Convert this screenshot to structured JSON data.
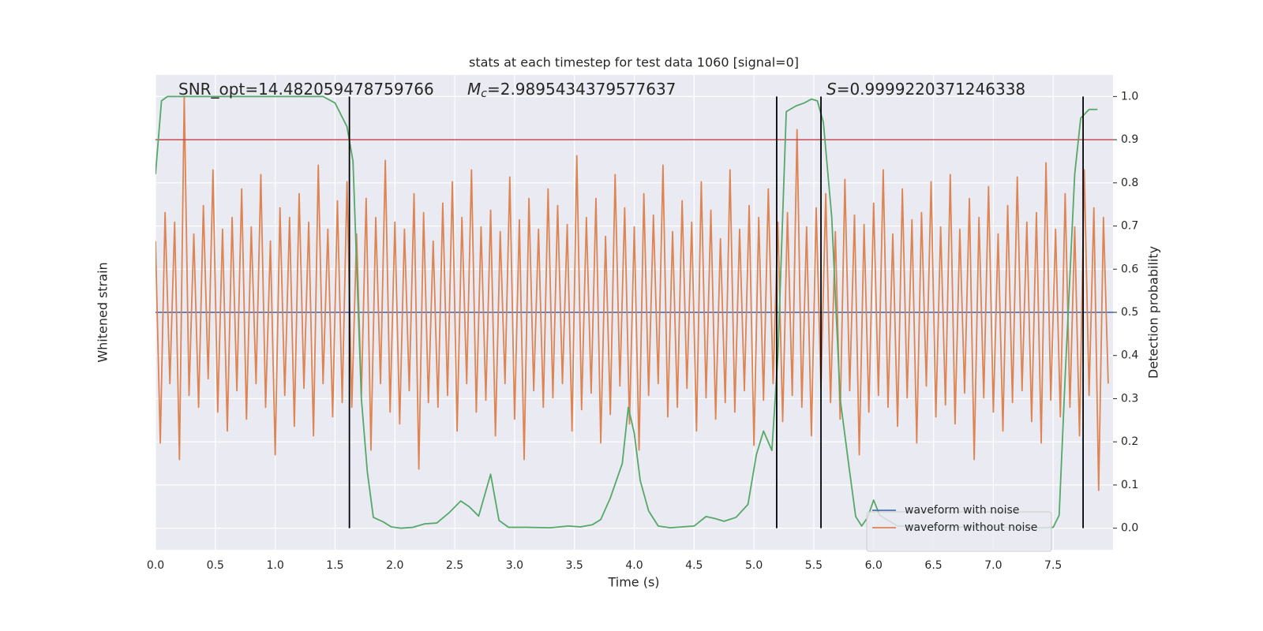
{
  "chart_data": {
    "type": "line",
    "title": "stats at each timestep for test data 1060 [signal=0]",
    "x_label": "Time (s)",
    "y_label": "Whitened strain",
    "y2_label": "Detection probability",
    "xlim": [
      0,
      8
    ],
    "xticks": [
      {
        "value": 0,
        "label": "0.0"
      },
      0.5,
      {
        "value": 1,
        "label": "1.0"
      },
      1.5,
      {
        "value": 2,
        "label": "2.0"
      },
      2.5,
      {
        "value": 3,
        "label": "3.0"
      },
      3.5,
      {
        "value": 4,
        "label": "4.0"
      },
      4.5,
      {
        "value": 5,
        "label": "5.0"
      },
      5.5,
      {
        "value": 6,
        "label": "6.0"
      },
      6.5,
      {
        "value": 7,
        "label": "7.0"
      },
      7.5
    ],
    "ylim": [
      -1,
      1
    ],
    "y2lim": [
      -0.05,
      1.05
    ],
    "y2ticks": [
      {
        "value": 0,
        "label": "0.0"
      },
      0.1,
      0.2,
      0.3,
      0.4,
      0.5,
      0.6,
      0.7,
      0.8,
      0.9,
      {
        "value": 1,
        "label": "1.0"
      }
    ],
    "grid": true,
    "legend": "lower right",
    "annotations": [
      {
        "text": "SNR_opt=14.482059478759766"
      },
      {
        "symbol": "M",
        "subscript": "c",
        "text": "=2.9895434379577637"
      },
      {
        "symbol": "S",
        "text": "=0.9999220371246338"
      }
    ],
    "threshold": {
      "value": 0.9,
      "color": "#c44e52",
      "axis": "y2"
    },
    "vlines": {
      "x": [
        1.62,
        5.19,
        5.56,
        7.75
      ],
      "ylim": [
        0,
        1
      ],
      "color": "#000000",
      "axis": "y2"
    },
    "series": [
      {
        "name": "waveform with noise",
        "color": "#4c72b0",
        "x": [
          0,
          1,
          2,
          3,
          4,
          5,
          6,
          7,
          8
        ],
        "values": [
          0,
          0,
          0,
          0,
          0,
          0,
          0,
          0,
          0
        ]
      },
      {
        "name": "waveform without noise",
        "color": "#dd8452",
        "x": [
          0,
          0.04,
          0.08,
          0.12,
          0.16,
          0.2,
          0.24,
          0.28,
          0.32,
          0.36,
          0.4,
          0.44,
          0.48,
          0.52,
          0.56,
          0.6,
          0.64,
          0.68,
          0.72,
          0.76,
          0.8,
          0.84,
          0.88,
          0.92,
          0.96,
          1,
          1.04,
          1.08,
          1.12,
          1.16,
          1.2,
          1.24,
          1.28,
          1.32,
          1.36,
          1.4,
          1.44,
          1.48,
          1.52,
          1.56,
          1.6,
          1.64,
          1.68,
          1.72,
          1.76,
          1.8,
          1.84,
          1.88,
          1.92,
          1.96,
          2,
          2.04,
          2.08,
          2.12,
          2.16,
          2.2,
          2.24,
          2.28,
          2.32,
          2.36,
          2.4,
          2.44,
          2.48,
          2.52,
          2.56,
          2.6,
          2.64,
          2.68,
          2.72,
          2.76,
          2.8,
          2.84,
          2.88,
          2.92,
          2.96,
          3,
          3.04,
          3.08,
          3.12,
          3.16,
          3.2,
          3.24,
          3.28,
          3.32,
          3.36,
          3.4,
          3.44,
          3.48,
          3.52,
          3.56,
          3.6,
          3.64,
          3.68,
          3.72,
          3.76,
          3.8,
          3.84,
          3.88,
          3.92,
          3.96,
          4,
          4.04,
          4.08,
          4.12,
          4.16,
          4.2,
          4.24,
          4.28,
          4.32,
          4.36,
          4.4,
          4.44,
          4.48,
          4.52,
          4.56,
          4.6,
          4.64,
          4.68,
          4.72,
          4.76,
          4.8,
          4.84,
          4.88,
          4.92,
          4.96,
          5,
          5.04,
          5.08,
          5.12,
          5.16,
          5.2,
          5.24,
          5.28,
          5.32,
          5.36,
          5.4,
          5.44,
          5.48,
          5.52,
          5.56,
          5.6,
          5.64,
          5.68,
          5.72,
          5.76,
          5.8,
          5.84,
          5.88,
          5.92,
          5.96,
          6,
          6.04,
          6.08,
          6.12,
          6.16,
          6.2,
          6.24,
          6.28,
          6.32,
          6.36,
          6.4,
          6.44,
          6.48,
          6.52,
          6.56,
          6.6,
          6.64,
          6.68,
          6.72,
          6.76,
          6.8,
          6.84,
          6.88,
          6.92,
          6.96,
          7,
          7.04,
          7.08,
          7.12,
          7.16,
          7.2,
          7.24,
          7.28,
          7.32,
          7.36,
          7.4,
          7.44,
          7.48,
          7.52,
          7.56,
          7.6,
          7.64,
          7.68,
          7.72,
          7.76,
          7.8,
          7.84,
          7.88,
          7.92,
          7.96
        ],
        "values": [
          0.3,
          -0.55,
          0.42,
          -0.3,
          0.38,
          -0.62,
          0.91,
          -0.35,
          0.33,
          -0.4,
          0.45,
          -0.28,
          0.6,
          -0.42,
          0.35,
          -0.5,
          0.4,
          -0.33,
          0.52,
          -0.45,
          0.36,
          -0.3,
          0.58,
          -0.4,
          0.3,
          -0.6,
          0.44,
          -0.35,
          0.4,
          -0.48,
          0.5,
          -0.32,
          0.38,
          -0.52,
          0.62,
          -0.3,
          0.35,
          -0.44,
          0.47,
          -0.38,
          0.55,
          -0.4,
          0.33,
          -0.35,
          0.48,
          -0.58,
          0.4,
          -0.3,
          0.64,
          -0.42,
          0.38,
          -0.47,
          0.35,
          -0.33,
          0.5,
          -0.66,
          0.42,
          -0.38,
          0.3,
          -0.4,
          0.46,
          -0.35,
          0.55,
          -0.5,
          0.4,
          -0.3,
          0.6,
          -0.42,
          0.36,
          -0.37,
          0.43,
          -0.52,
          0.34,
          -0.3,
          0.57,
          -0.45,
          0.39,
          -0.62,
          0.48,
          -0.33,
          0.35,
          -0.4,
          0.52,
          -0.36,
          0.45,
          -0.3,
          0.37,
          -0.5,
          0.66,
          -0.41,
          0.4,
          -0.34,
          0.48,
          -0.55,
          0.32,
          -0.43,
          0.58,
          -0.31,
          0.44,
          -0.47,
          0.36,
          -0.58,
          0.5,
          -0.35,
          0.41,
          -0.3,
          0.62,
          -0.44,
          0.34,
          -0.4,
          0.47,
          -0.32,
          0.38,
          -0.5,
          0.55,
          -0.36,
          0.43,
          -0.45,
          0.31,
          -0.38,
          0.6,
          -0.42,
          0.35,
          -0.33,
          0.45,
          -0.56,
          0.4,
          -0.37,
          0.52,
          -0.3,
          0.38,
          -0.46,
          0.42,
          -0.35,
          0.77,
          -0.4,
          0.36,
          -0.52,
          0.44,
          -0.32,
          0.5,
          -0.38,
          0.34,
          -0.45,
          0.56,
          -0.33,
          0.41,
          -0.6,
          0.37,
          -0.42,
          0.46,
          -0.35,
          0.6,
          -0.4,
          0.33,
          -0.48,
          0.52,
          -0.36,
          0.39,
          -0.55,
          0.42,
          -0.31,
          0.55,
          -0.44,
          0.36,
          -0.39,
          0.58,
          -0.47,
          0.35,
          -0.34,
          0.48,
          -0.62,
          0.4,
          -0.36,
          0.53,
          -0.42,
          0.33,
          -0.5,
          0.45,
          -0.38,
          0.57,
          -0.33,
          0.38,
          -0.46,
          0.42,
          -0.55,
          0.63,
          -0.37,
          0.35,
          -0.44,
          0.5,
          -0.4,
          0.36,
          -0.52,
          0.6,
          -0.35,
          0.44,
          -0.75,
          0.4,
          -0.3
        ]
      },
      {
        "color": "#55a868",
        "axis": "y2",
        "x": [
          0,
          0.05,
          0.1,
          0.2,
          0.4,
          0.6,
          0.8,
          1.0,
          1.2,
          1.4,
          1.5,
          1.6,
          1.65,
          1.72,
          1.77,
          1.82,
          1.9,
          1.97,
          2.05,
          2.15,
          2.25,
          2.35,
          2.45,
          2.55,
          2.62,
          2.7,
          2.8,
          2.87,
          2.95,
          3.1,
          3.3,
          3.45,
          3.55,
          3.65,
          3.72,
          3.8,
          3.9,
          3.95,
          4.0,
          4.05,
          4.12,
          4.2,
          4.3,
          4.5,
          4.6,
          4.68,
          4.75,
          4.85,
          4.95,
          5.02,
          5.08,
          5.15,
          5.2,
          5.27,
          5.35,
          5.42,
          5.48,
          5.53,
          5.58,
          5.65,
          5.72,
          5.8,
          5.85,
          5.9,
          5.95,
          6.0,
          6.05,
          6.2,
          6.5,
          6.8,
          7.1,
          7.4,
          7.5,
          7.55,
          7.6,
          7.68,
          7.73,
          7.8,
          7.87
        ],
        "values": [
          0.82,
          0.99,
          1.0,
          1.0,
          1.0,
          1.0,
          1.0,
          1.0,
          1.0,
          1.0,
          0.985,
          0.93,
          0.85,
          0.3,
          0.13,
          0.025,
          0.015,
          0.003,
          0.0,
          0.002,
          0.01,
          0.012,
          0.035,
          0.063,
          0.05,
          0.028,
          0.125,
          0.018,
          0.002,
          0.002,
          0.001,
          0.005,
          0.003,
          0.008,
          0.02,
          0.07,
          0.15,
          0.28,
          0.22,
          0.11,
          0.04,
          0.005,
          0.001,
          0.005,
          0.027,
          0.022,
          0.016,
          0.025,
          0.055,
          0.17,
          0.225,
          0.18,
          0.4,
          0.965,
          0.978,
          0.985,
          0.994,
          0.99,
          0.94,
          0.72,
          0.3,
          0.13,
          0.027,
          0.005,
          0.025,
          0.065,
          0.03,
          0.005,
          0.002,
          0.003,
          0.002,
          0.001,
          0.002,
          0.03,
          0.35,
          0.82,
          0.95,
          0.97,
          0.97
        ]
      }
    ]
  }
}
